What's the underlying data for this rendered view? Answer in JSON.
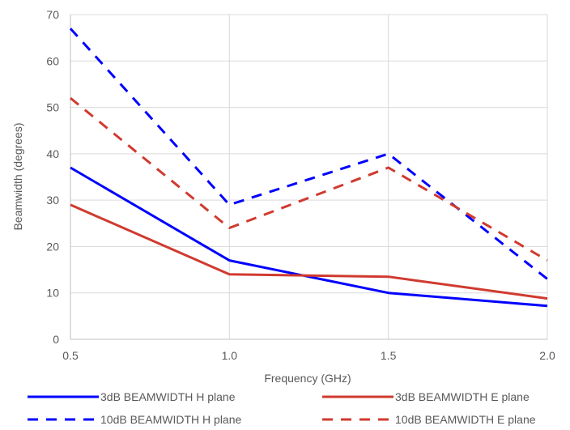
{
  "chart_data": {
    "type": "line",
    "title": "",
    "xlabel": "Frequency (GHz)",
    "ylabel": "Beamwidth (degrees)",
    "x": [
      0.5,
      1.0,
      1.5,
      2.0
    ],
    "x_tick_labels": [
      "0.5",
      "1.0",
      "1.5",
      "2.0"
    ],
    "y_ticks": [
      0,
      10,
      20,
      30,
      40,
      50,
      60,
      70
    ],
    "xlim": [
      0.5,
      2.0
    ],
    "ylim": [
      0,
      70
    ],
    "grid": true,
    "legend_position": "bottom",
    "series": [
      {
        "name": "3dB BEAMWIDTH H plane",
        "values": [
          37,
          17,
          10,
          7.2
        ],
        "color": "#0000ff",
        "dash": "solid"
      },
      {
        "name": "3dB BEAMWIDTH E plane",
        "values": [
          29,
          14,
          13.5,
          8.8
        ],
        "color": "#d03a2f",
        "dash": "solid"
      },
      {
        "name": "10dB BEAMWIDTH H plane",
        "values": [
          67,
          29,
          40,
          13
        ],
        "color": "#0000ff",
        "dash": "dashed"
      },
      {
        "name": "10dB BEAMWIDTH E plane",
        "values": [
          52,
          24,
          37,
          17
        ],
        "color": "#d03a2f",
        "dash": "dashed"
      }
    ]
  }
}
